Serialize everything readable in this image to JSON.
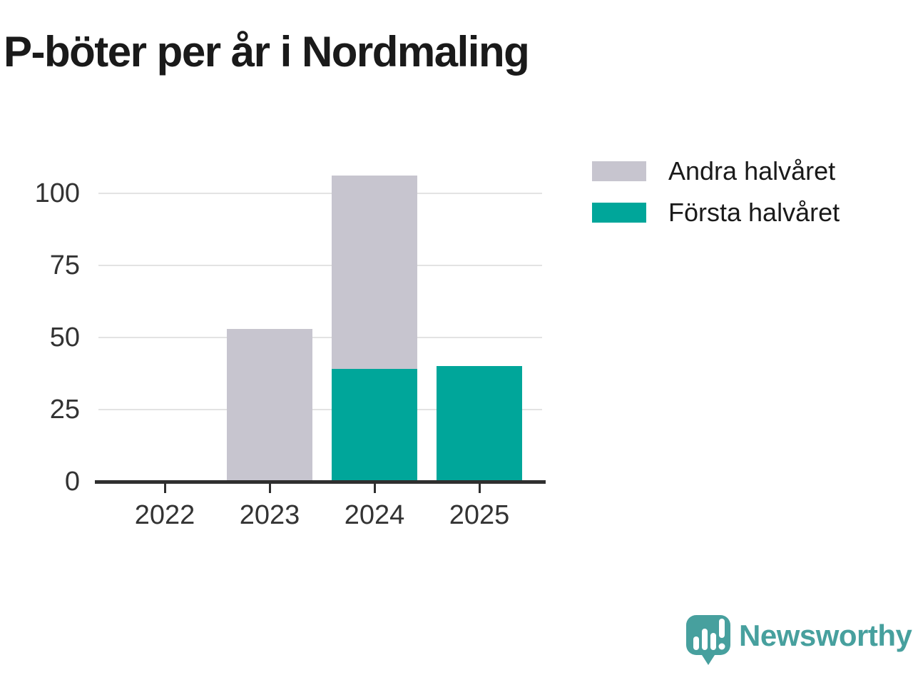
{
  "title": "P-böter per år i Nordmaling",
  "legend": {
    "items": [
      {
        "label": "Andra halvåret",
        "color": "#c7c5cf",
        "series": "second-half"
      },
      {
        "label": "Första halvåret",
        "color": "#00a69a",
        "series": "first-half"
      }
    ]
  },
  "chart_data": {
    "type": "bar",
    "stacked": true,
    "title": "P-böter per år i Nordmaling",
    "categories": [
      "2022",
      "2023",
      "2024",
      "2025"
    ],
    "series": [
      {
        "name": "Första halvåret",
        "color": "#00a69a",
        "values": [
          0,
          0,
          39,
          40
        ]
      },
      {
        "name": "Andra halvåret",
        "color": "#c7c5cf",
        "values": [
          0,
          53,
          67,
          0
        ]
      }
    ],
    "stack_order_bottom_to_top": [
      "Första halvåret",
      "Andra halvåret"
    ],
    "yticks": [
      0,
      25,
      50,
      75,
      100
    ],
    "ylim": [
      0,
      110
    ],
    "xlabel": "",
    "ylabel": "",
    "grid": true,
    "legend_position": "top-right",
    "totals_by_year": {
      "2022": 0,
      "2023": 53,
      "2024": 106,
      "2025": 40
    }
  },
  "branding": {
    "logo_text": "Newsworthy",
    "logo_color": "#47a09e",
    "logo_icon": "newsworthy-speech-bubble-bar-chart-icon"
  },
  "colors": {
    "background": "#ffffff",
    "title_text": "#1a1a1a",
    "axis_text": "#333333",
    "axis_line": "#2f2f2f",
    "gridline": "#e3e3e3",
    "bar_first_half": "#00a69a",
    "bar_second_half": "#c7c5cf"
  }
}
